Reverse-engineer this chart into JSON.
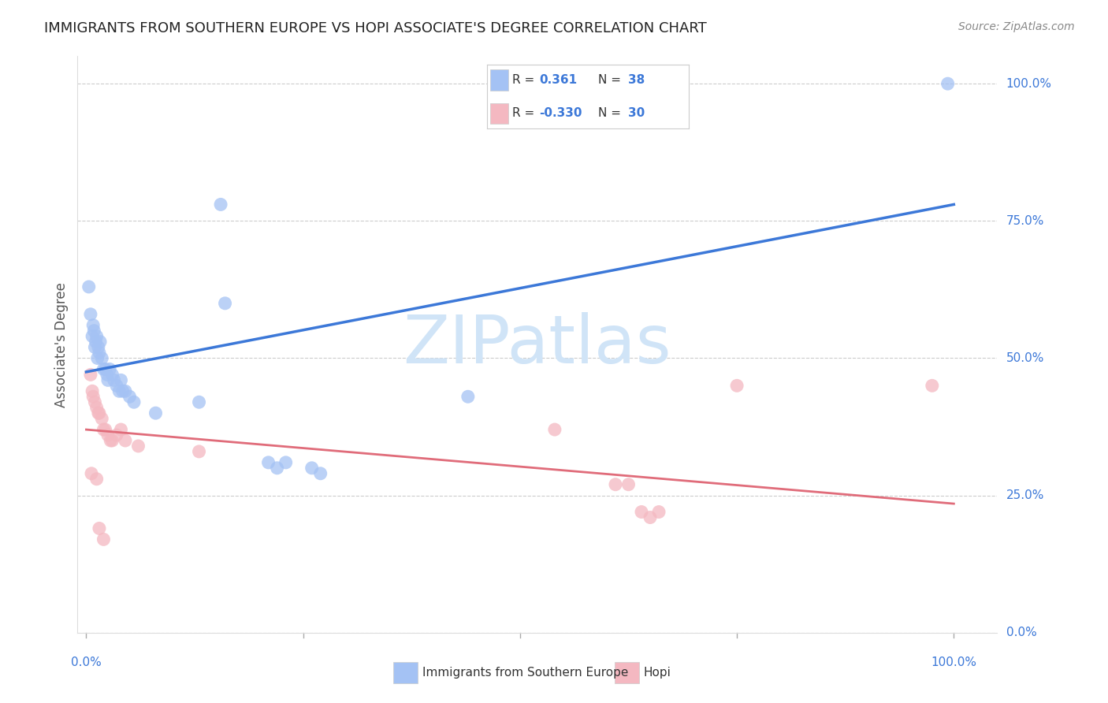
{
  "title": "IMMIGRANTS FROM SOUTHERN EUROPE VS HOPI ASSOCIATE'S DEGREE CORRELATION CHART",
  "source": "Source: ZipAtlas.com",
  "ylabel": "Associate's Degree",
  "watermark": "ZIPatlas",
  "blue_R": "0.361",
  "blue_N": "38",
  "pink_R": "-0.330",
  "pink_N": "30",
  "blue_scatter": [
    [
      0.005,
      0.58
    ],
    [
      0.007,
      0.54
    ],
    [
      0.008,
      0.56
    ],
    [
      0.009,
      0.55
    ],
    [
      0.01,
      0.52
    ],
    [
      0.011,
      0.53
    ],
    [
      0.012,
      0.54
    ],
    [
      0.013,
      0.5
    ],
    [
      0.014,
      0.52
    ],
    [
      0.015,
      0.51
    ],
    [
      0.016,
      0.53
    ],
    [
      0.018,
      0.5
    ],
    [
      0.02,
      0.48
    ],
    [
      0.022,
      0.48
    ],
    [
      0.024,
      0.47
    ],
    [
      0.025,
      0.46
    ],
    [
      0.027,
      0.48
    ],
    [
      0.03,
      0.47
    ],
    [
      0.032,
      0.46
    ],
    [
      0.035,
      0.45
    ],
    [
      0.038,
      0.44
    ],
    [
      0.04,
      0.46
    ],
    [
      0.042,
      0.44
    ],
    [
      0.045,
      0.44
    ],
    [
      0.05,
      0.43
    ],
    [
      0.055,
      0.42
    ],
    [
      0.08,
      0.4
    ],
    [
      0.13,
      0.42
    ],
    [
      0.155,
      0.78
    ],
    [
      0.16,
      0.6
    ],
    [
      0.21,
      0.31
    ],
    [
      0.22,
      0.3
    ],
    [
      0.23,
      0.31
    ],
    [
      0.26,
      0.3
    ],
    [
      0.27,
      0.29
    ],
    [
      0.44,
      0.43
    ],
    [
      0.003,
      0.63
    ],
    [
      0.993,
      1.0
    ]
  ],
  "pink_scatter": [
    [
      0.005,
      0.47
    ],
    [
      0.007,
      0.44
    ],
    [
      0.008,
      0.43
    ],
    [
      0.01,
      0.42
    ],
    [
      0.012,
      0.41
    ],
    [
      0.014,
      0.4
    ],
    [
      0.015,
      0.4
    ],
    [
      0.018,
      0.39
    ],
    [
      0.02,
      0.37
    ],
    [
      0.022,
      0.37
    ],
    [
      0.025,
      0.36
    ],
    [
      0.028,
      0.35
    ],
    [
      0.03,
      0.35
    ],
    [
      0.035,
      0.36
    ],
    [
      0.04,
      0.37
    ],
    [
      0.045,
      0.35
    ],
    [
      0.06,
      0.34
    ],
    [
      0.13,
      0.33
    ],
    [
      0.006,
      0.29
    ],
    [
      0.012,
      0.28
    ],
    [
      0.015,
      0.19
    ],
    [
      0.02,
      0.17
    ],
    [
      0.54,
      0.37
    ],
    [
      0.61,
      0.27
    ],
    [
      0.625,
      0.27
    ],
    [
      0.64,
      0.22
    ],
    [
      0.65,
      0.21
    ],
    [
      0.66,
      0.22
    ],
    [
      0.75,
      0.45
    ],
    [
      0.975,
      0.45
    ]
  ],
  "blue_line_y_start": 0.475,
  "blue_line_y_end": 0.78,
  "pink_line_y_start": 0.37,
  "pink_line_y_end": 0.235,
  "ylim_min": 0.0,
  "ylim_max": 1.05,
  "xlim_min": -0.01,
  "xlim_max": 1.05,
  "ytick_vals": [
    0.0,
    0.25,
    0.5,
    0.75,
    1.0
  ],
  "blue_color": "#a4c2f4",
  "pink_color": "#f4b8c1",
  "blue_line_color": "#3c78d8",
  "pink_line_color": "#e06c7a",
  "grid_color": "#cccccc",
  "title_fontsize": 13,
  "source_fontsize": 10,
  "watermark_color": "#d0e4f7",
  "scatter_size": 150,
  "legend_text_color": "#3c78d8",
  "legend_border_color": "#cccccc"
}
